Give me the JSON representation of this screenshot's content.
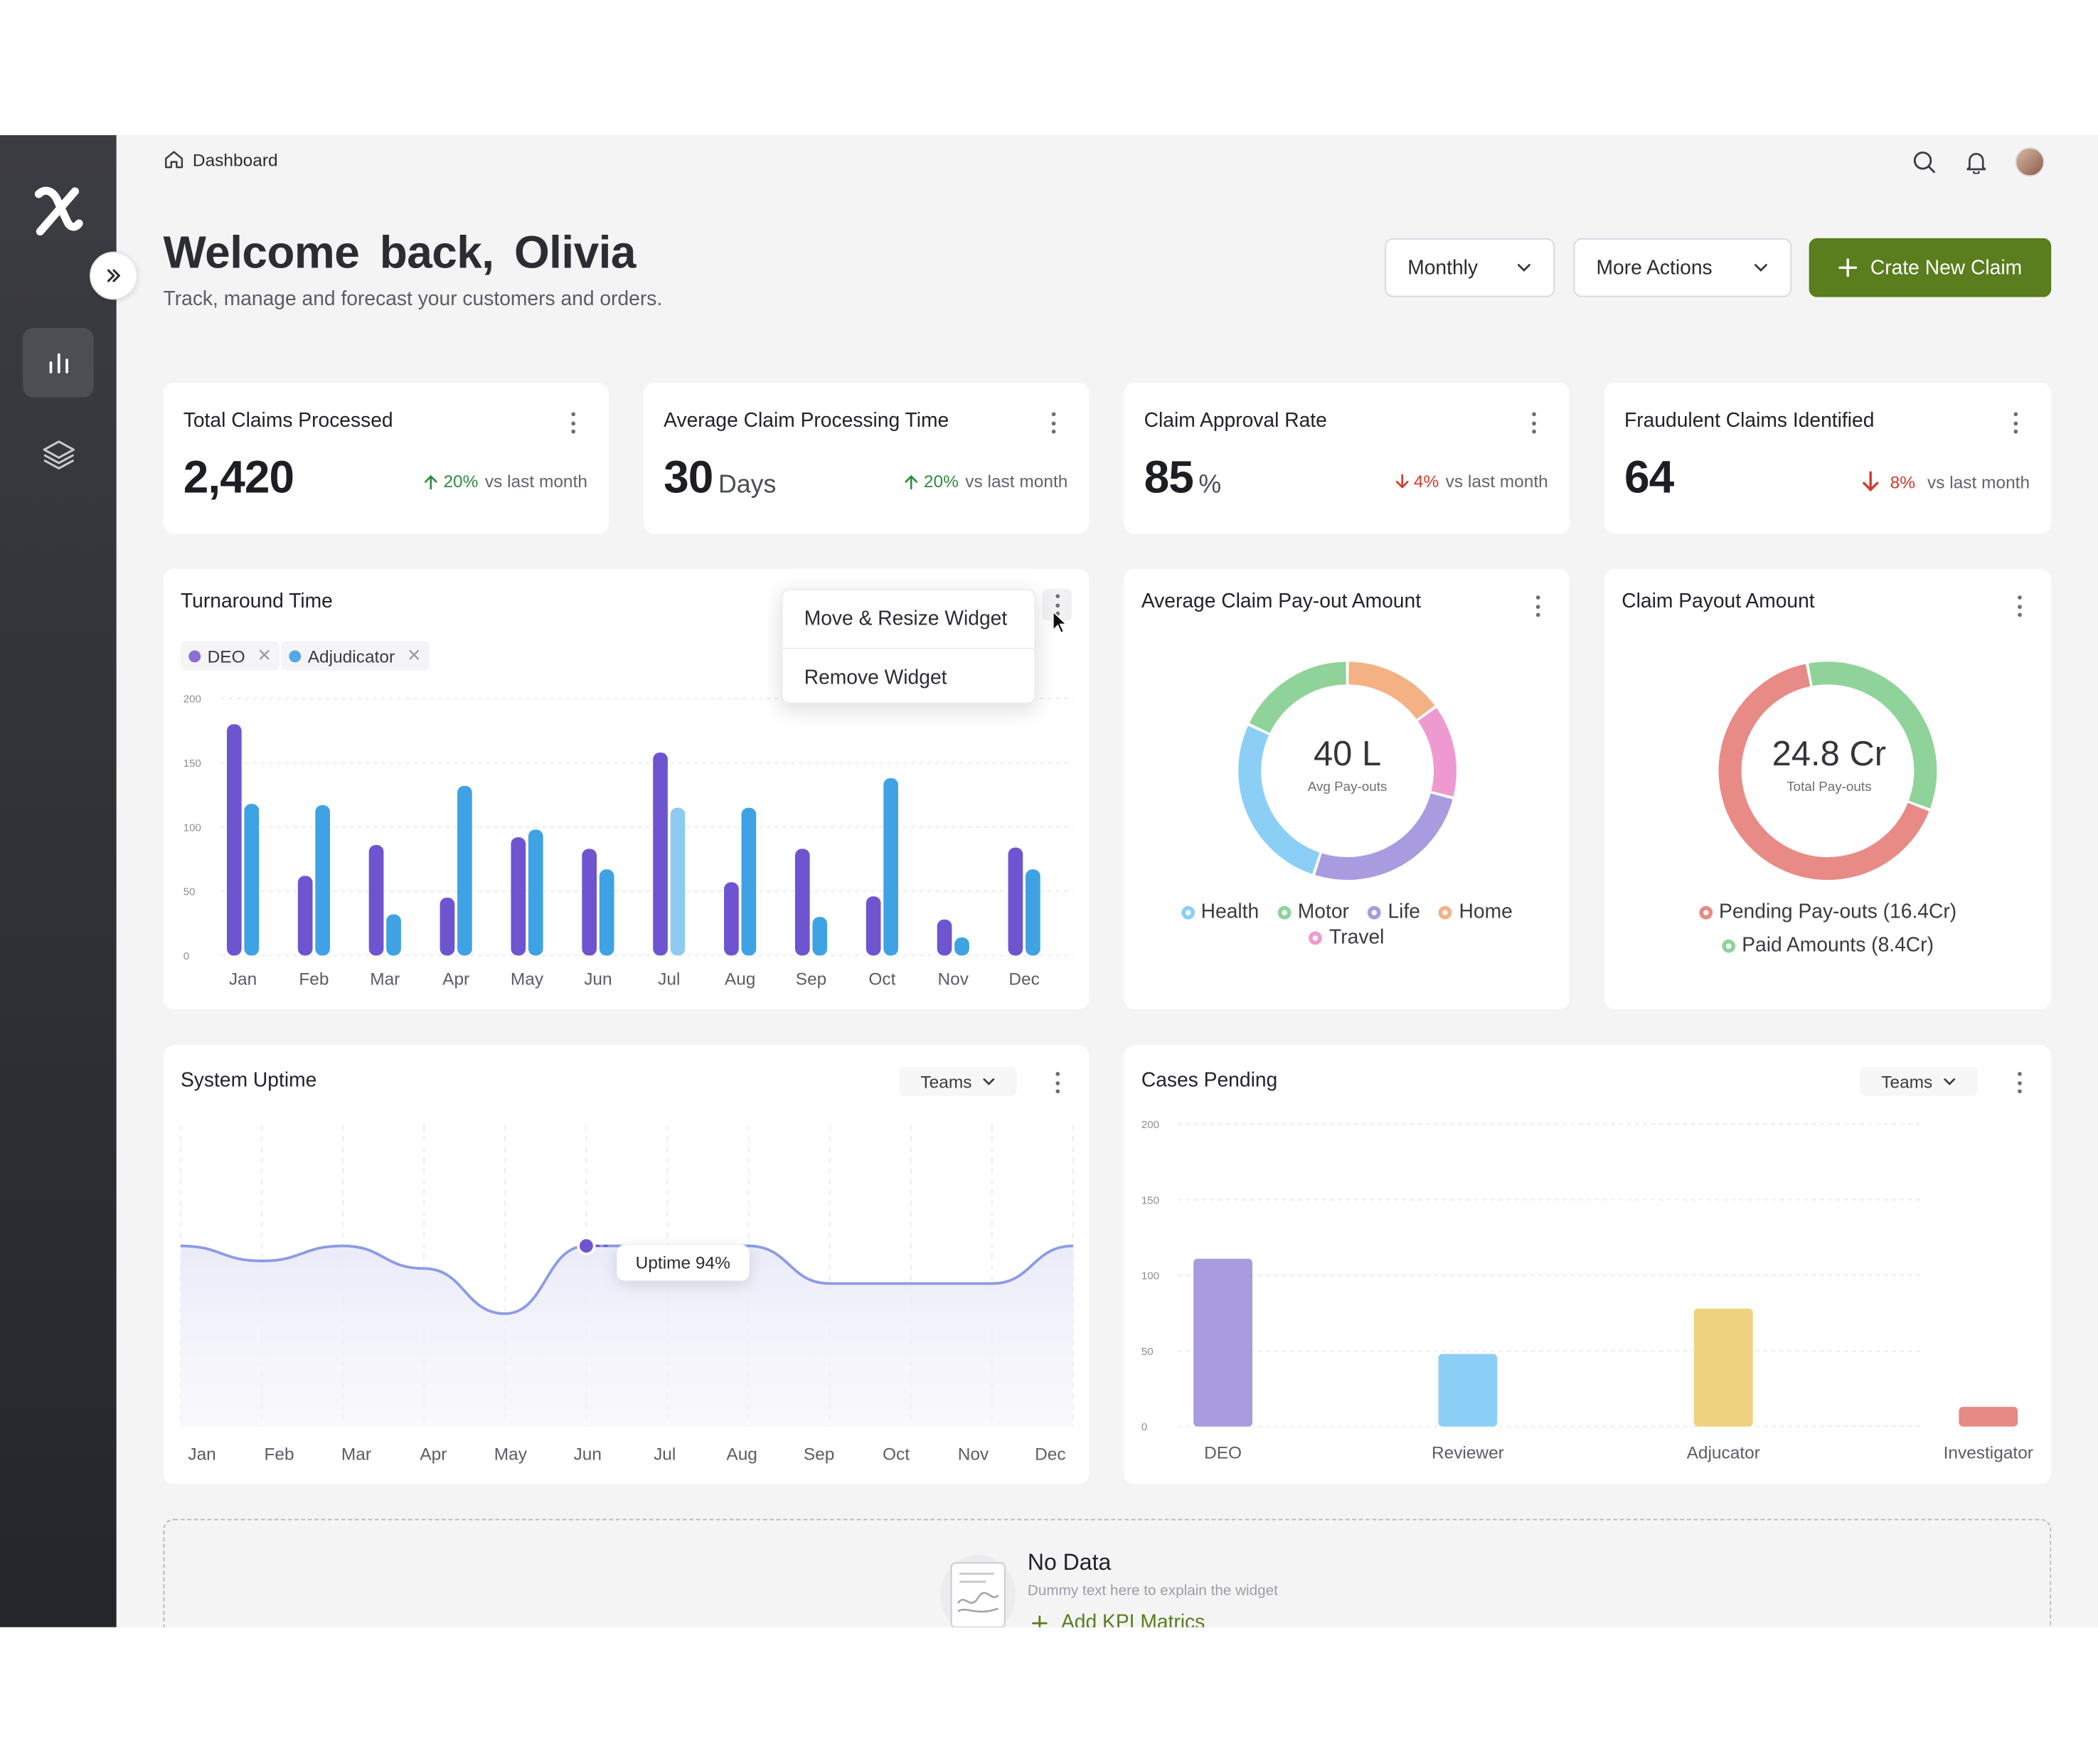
{
  "breadcrumb": {
    "label": "Dashboard"
  },
  "header": {
    "welcome": "Welcome  back,  Olivia",
    "subtitle": "Track, manage and forecast your customers and orders.",
    "period_label": "Monthly",
    "more_actions_label": "More Actions",
    "create_label": "Crate New Claim"
  },
  "kpis": [
    {
      "title": "Total Claims Processed",
      "value": "2,420",
      "unit": "",
      "delta": "20%",
      "direction": "up",
      "vs": "vs last month"
    },
    {
      "title": "Average Claim Processing Time",
      "value": "30",
      "unit": "Days",
      "delta": "20%",
      "direction": "up",
      "vs": "vs last month"
    },
    {
      "title": "Claim Approval Rate",
      "value": "85",
      "unit": "%",
      "delta": "4%",
      "direction": "down",
      "vs": "vs last month"
    },
    {
      "title": "Fraudulent Claims Identified",
      "value": "64",
      "unit": "",
      "delta": "8%",
      "direction": "down",
      "vs": "vs last month"
    }
  ],
  "turnaround": {
    "title": "Turnaround Time",
    "chips": [
      {
        "label": "DEO",
        "color": "#8b6fd8"
      },
      {
        "label": "Adjudicator",
        "color": "#53a9e8"
      }
    ],
    "menu": [
      "Move & Resize Widget",
      "Remove Widget"
    ]
  },
  "payout_avg": {
    "title": "Average Claim Pay-out Amount",
    "center_value": "40 L",
    "center_label": "Avg Pay-outs",
    "legend": [
      {
        "label": "Health",
        "color": "#8ccff6"
      },
      {
        "label": "Motor",
        "color": "#8fd39b"
      },
      {
        "label": "Life",
        "color": "#a99be0"
      },
      {
        "label": "Home",
        "color": "#f4b184"
      },
      {
        "label": "Travel",
        "color": "#ee9ad0"
      }
    ]
  },
  "payout_total": {
    "title": "Claim Payout Amount",
    "center_value": "24.8 Cr",
    "center_label": "Total Pay-outs",
    "legend": [
      {
        "label": "Pending Pay-outs (16.4Cr)",
        "color": "#e88a86"
      },
      {
        "label": "Paid Amounts (8.4Cr)",
        "color": "#8fd39b"
      }
    ]
  },
  "uptime": {
    "title": "System Uptime",
    "filter_label": "Teams",
    "tooltip": "Uptime  94%"
  },
  "cases": {
    "title": "Cases Pending",
    "filter_label": "Teams"
  },
  "nodata": {
    "title": "No Data",
    "description": "Dummy text here to explain the widget",
    "action_label": "Add KPI Matrics"
  },
  "chart_data": [
    {
      "type": "bar",
      "title": "Turnaround Time",
      "categories": [
        "Jan",
        "Feb",
        "Mar",
        "Apr",
        "May",
        "Jun",
        "Jul",
        "Aug",
        "Sep",
        "Oct",
        "Nov",
        "Dec"
      ],
      "ylim": [
        0,
        200
      ],
      "yticks": [
        0,
        50,
        100,
        150,
        200
      ],
      "series": [
        {
          "name": "DEO",
          "color": "#6e55cf",
          "values": [
            180,
            62,
            86,
            45,
            92,
            83,
            158,
            57,
            83,
            46,
            28,
            84
          ]
        },
        {
          "name": "Adjudicator",
          "color": "#3ea2e5",
          "values": [
            118,
            117,
            32,
            132,
            98,
            67,
            115,
            115,
            30,
            138,
            14,
            67
          ]
        }
      ]
    },
    {
      "type": "pie",
      "title": "Average Claim Pay-out Amount",
      "categories": [
        "Home",
        "Travel",
        "Life",
        "Health",
        "Motor"
      ],
      "values": [
        15,
        14,
        26,
        27,
        18
      ],
      "colors": [
        "#f4b184",
        "#ee9ad0",
        "#a99be0",
        "#8ccff6",
        "#8fd39b"
      ]
    },
    {
      "type": "pie",
      "title": "Claim Payout Amount",
      "categories": [
        "Pending Pay-outs",
        "Paid Amounts"
      ],
      "values": [
        16.4,
        8.4
      ],
      "colors": [
        "#e88a86",
        "#8fd39b"
      ]
    },
    {
      "type": "area",
      "title": "System Uptime",
      "x": [
        "Jan",
        "Feb",
        "Mar",
        "Apr",
        "May",
        "Jun",
        "Jul",
        "Aug",
        "Sep",
        "Oct",
        "Nov",
        "Dec"
      ],
      "values": [
        94,
        92,
        94,
        91,
        85,
        94,
        94,
        94,
        89,
        89,
        89,
        94
      ],
      "highlight": {
        "x": "Jun",
        "value": 94
      }
    },
    {
      "type": "bar",
      "title": "Cases Pending",
      "categories": [
        "DEO",
        "Reviewer",
        "Adjucator",
        "Investigator"
      ],
      "values": [
        111,
        48,
        78,
        13
      ],
      "colors": [
        "#a99be0",
        "#8ccff6",
        "#eed27f",
        "#e58a85"
      ],
      "ylim": [
        0,
        200
      ],
      "yticks": [
        0,
        50,
        100,
        150,
        200
      ]
    }
  ]
}
